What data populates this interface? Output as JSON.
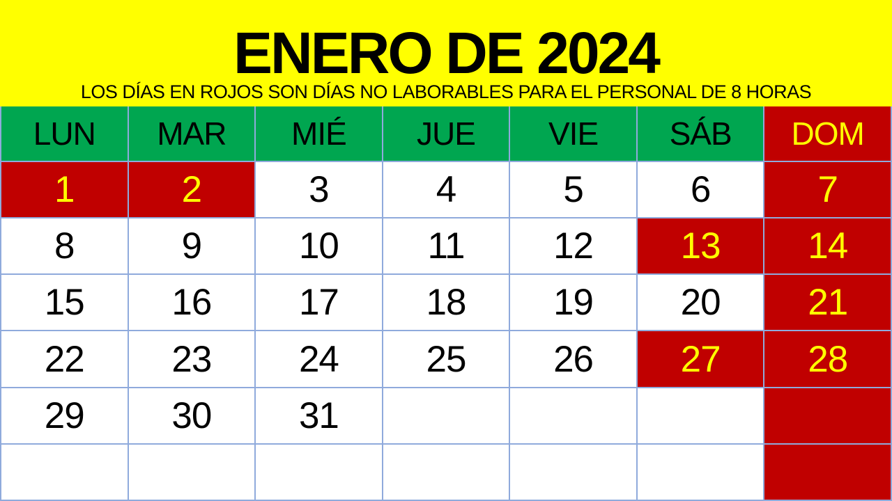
{
  "banner": {
    "title": "ENERO DE 2024",
    "subtitle": "LOS DÍAS EN ROJOS SON DÍAS NO LABORABLES PARA EL PERSONAL DE 8 HORAS",
    "background": "#FFFF00",
    "text_color": "#000000"
  },
  "calendar": {
    "day_headers": [
      {
        "label": "LUN",
        "holiday": false
      },
      {
        "label": "MAR",
        "holiday": false
      },
      {
        "label": "MIÉ",
        "holiday": false
      },
      {
        "label": "JUE",
        "holiday": false
      },
      {
        "label": "VIE",
        "holiday": false
      },
      {
        "label": "SÁB",
        "holiday": false
      },
      {
        "label": "DOM",
        "holiday": true
      }
    ],
    "weeks": [
      [
        {
          "day": "1",
          "holiday": true
        },
        {
          "day": "2",
          "holiday": true
        },
        {
          "day": "3",
          "holiday": false
        },
        {
          "day": "4",
          "holiday": false
        },
        {
          "day": "5",
          "holiday": false
        },
        {
          "day": "6",
          "holiday": false
        },
        {
          "day": "7",
          "holiday": true
        }
      ],
      [
        {
          "day": "8",
          "holiday": false
        },
        {
          "day": "9",
          "holiday": false
        },
        {
          "day": "10",
          "holiday": false
        },
        {
          "day": "11",
          "holiday": false
        },
        {
          "day": "12",
          "holiday": false
        },
        {
          "day": "13",
          "holiday": true
        },
        {
          "day": "14",
          "holiday": true
        }
      ],
      [
        {
          "day": "15",
          "holiday": false
        },
        {
          "day": "16",
          "holiday": false
        },
        {
          "day": "17",
          "holiday": false
        },
        {
          "day": "18",
          "holiday": false
        },
        {
          "day": "19",
          "holiday": false
        },
        {
          "day": "20",
          "holiday": false
        },
        {
          "day": "21",
          "holiday": true
        }
      ],
      [
        {
          "day": "22",
          "holiday": false
        },
        {
          "day": "23",
          "holiday": false
        },
        {
          "day": "24",
          "holiday": false
        },
        {
          "day": "25",
          "holiday": false
        },
        {
          "day": "26",
          "holiday": false
        },
        {
          "day": "27",
          "holiday": true
        },
        {
          "day": "28",
          "holiday": true
        }
      ],
      [
        {
          "day": "29",
          "holiday": false
        },
        {
          "day": "30",
          "holiday": false
        },
        {
          "day": "31",
          "holiday": false
        },
        {
          "day": "",
          "holiday": false
        },
        {
          "day": "",
          "holiday": false
        },
        {
          "day": "",
          "holiday": false
        },
        {
          "day": "",
          "holiday": true
        }
      ],
      [
        {
          "day": "",
          "holiday": false
        },
        {
          "day": "",
          "holiday": false
        },
        {
          "day": "",
          "holiday": false
        },
        {
          "day": "",
          "holiday": false
        },
        {
          "day": "",
          "holiday": false
        },
        {
          "day": "",
          "holiday": false
        },
        {
          "day": "",
          "holiday": true
        }
      ]
    ],
    "colors": {
      "holiday_bg": "#C00000",
      "holiday_text": "#FFFF00",
      "weekday_header_bg": "#00A650",
      "weekday_header_text": "#000000",
      "day_bg": "#FFFFFF",
      "day_text": "#000000",
      "grid_border": "#8FAADC"
    }
  }
}
